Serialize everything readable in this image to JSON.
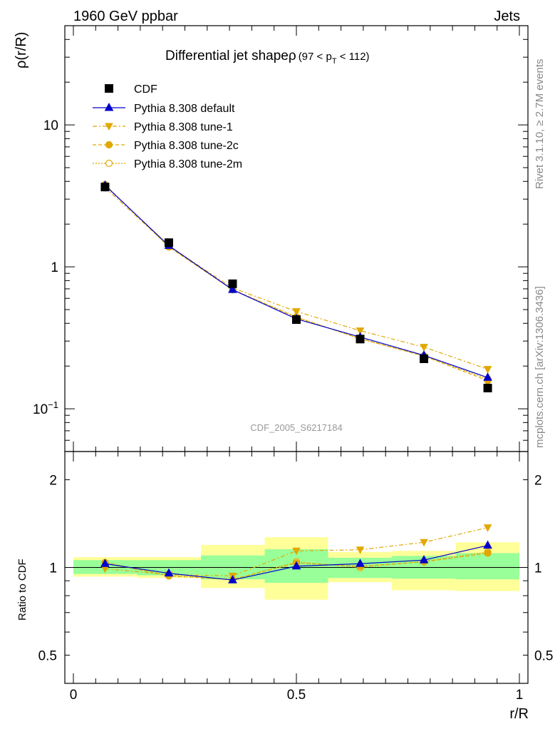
{
  "header": {
    "energy_label": "1960 GeV ppbar",
    "process_label": "Jets"
  },
  "side_texts": {
    "rivet": "Rivet 3.1.10, ≥ 2.7M events",
    "mcplots": "mcplots.cern.ch [arXiv:1306.3436]"
  },
  "analysis_id": "CDF_2005_S6217184",
  "colors": {
    "cdf": "#000000",
    "default": "#0000cc",
    "tunes": "#e0a800",
    "band_inner": "#99ff99",
    "band_outer": "#ffff99"
  },
  "chart_data": [
    {
      "type": "line",
      "title": "Differential jet shapeρ",
      "title_suffix": "(97 < p",
      "title_sub": "T",
      "title_end": " < 112)",
      "ylabel": "ρ(r/R)",
      "yscale": "log",
      "ylim": [
        0.05,
        50
      ],
      "xlim": [
        0,
        1
      ],
      "yticks": [
        {
          "value": 10,
          "label": "10"
        },
        {
          "value": 1,
          "label": "1"
        },
        {
          "value": 0.1,
          "label": "10−1"
        }
      ],
      "x": [
        0.071,
        0.214,
        0.357,
        0.5,
        0.643,
        0.786,
        0.929
      ],
      "series": [
        {
          "name": "CDF",
          "style": "data",
          "values": [
            3.65,
            1.48,
            0.76,
            0.425,
            0.31,
            0.225,
            0.14
          ]
        },
        {
          "name": "Pythia 8.308 default",
          "style": "default",
          "values": [
            3.75,
            1.41,
            0.69,
            0.43,
            0.32,
            0.238,
            0.166
          ]
        },
        {
          "name": "Pythia 8.308 tune-1",
          "style": "tune1",
          "values": [
            3.62,
            1.4,
            0.71,
            0.485,
            0.355,
            0.272,
            0.19
          ]
        },
        {
          "name": "Pythia 8.308 tune-2c",
          "style": "tune2c",
          "values": [
            3.8,
            1.38,
            0.69,
            0.44,
            0.313,
            0.235,
            0.158
          ]
        },
        {
          "name": "Pythia 8.308 tune-2m",
          "style": "tune2m",
          "values": [
            3.78,
            1.39,
            0.69,
            0.445,
            0.31,
            0.236,
            0.162
          ]
        }
      ]
    },
    {
      "type": "line",
      "ylabel": "Ratio to CDF",
      "xlabel": "r/R",
      "yscale": "log",
      "ylim": [
        0.4,
        2.5
      ],
      "xlim": [
        0,
        1
      ],
      "yticks": [
        {
          "value": 2,
          "label": "2"
        },
        {
          "value": 1,
          "label": "1"
        },
        {
          "value": 0.5,
          "label": "0.5"
        }
      ],
      "xticks": [
        {
          "value": 0,
          "label": "0"
        },
        {
          "value": 0.5,
          "label": "0.5"
        },
        {
          "value": 1,
          "label": "1"
        }
      ],
      "bin_edges": [
        0,
        0.143,
        0.286,
        0.429,
        0.571,
        0.714,
        0.857,
        1.0
      ],
      "band_inner": [
        [
          0.95,
          1.06
        ],
        [
          0.94,
          1.06
        ],
        [
          0.91,
          1.1
        ],
        [
          0.885,
          1.155
        ],
        [
          0.92,
          1.08
        ],
        [
          0.915,
          1.095
        ],
        [
          0.91,
          1.12
        ]
      ],
      "band_outer": [
        [
          0.93,
          1.085
        ],
        [
          0.92,
          1.085
        ],
        [
          0.85,
          1.195
        ],
        [
          0.775,
          1.27
        ],
        [
          0.89,
          1.13
        ],
        [
          0.835,
          1.14
        ],
        [
          0.83,
          1.22
        ]
      ],
      "x": [
        0.071,
        0.214,
        0.357,
        0.5,
        0.643,
        0.786,
        0.929
      ],
      "series": [
        {
          "name": "Pythia 8.308 default",
          "style": "default",
          "values": [
            1.03,
            0.955,
            0.905,
            1.01,
            1.03,
            1.06,
            1.19
          ]
        },
        {
          "name": "Pythia 8.308 tune-1",
          "style": "tune1",
          "values": [
            0.99,
            0.945,
            0.935,
            1.14,
            1.15,
            1.22,
            1.37
          ]
        },
        {
          "name": "Pythia 8.308 tune-2c",
          "style": "tune2c",
          "values": [
            1.04,
            0.935,
            0.91,
            1.035,
            1.01,
            1.045,
            1.12
          ]
        },
        {
          "name": "Pythia 8.308 tune-2m",
          "style": "tune2m",
          "values": [
            1.035,
            0.94,
            0.908,
            1.045,
            1.0,
            1.05,
            1.13
          ]
        }
      ]
    }
  ]
}
